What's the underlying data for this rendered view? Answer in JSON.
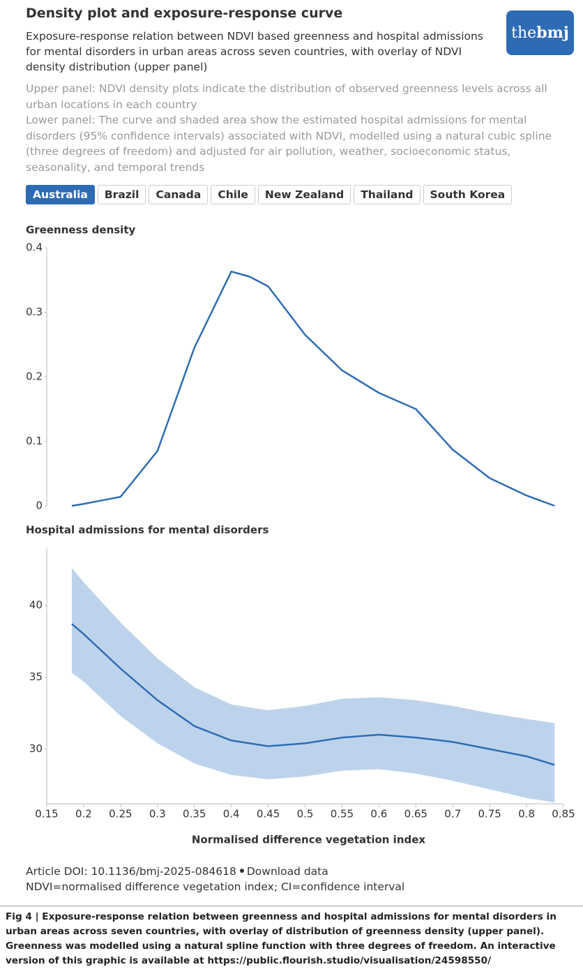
{
  "header": {
    "title": "Density plot and exposure-response curve",
    "subtitle": "Exposure-response relation between NDVI based greenness and hospital admissions for mental disorders in urban areas across seven countries, with overlay of NDVI density distribution (upper panel)",
    "notes": [
      "Upper panel: NDVI density plots indicate the distribution of observed greenness levels across all urban locations in each country",
      "Lower panel: The curve and shaded area show the estimated hospital admissions for mental disorders (95% confidence intervals) associated with NDVI, modelled using a natural cubic spline (three degrees of freedom) and adjusted for air pollution, weather, socioeconomic status, seasonality, and temporal trends"
    ]
  },
  "logo": {
    "prefix": "the",
    "name": "bmj"
  },
  "tabs": [
    "Australia",
    "Brazil",
    "Canada",
    "Chile",
    "New Zealand",
    "Thailand",
    "South Korea"
  ],
  "chart_data": [
    {
      "type": "line",
      "title": "Greenness density",
      "color": "#2e6db4",
      "x": [
        0.184,
        0.2,
        0.25,
        0.3,
        0.35,
        0.4,
        0.425,
        0.45,
        0.5,
        0.55,
        0.6,
        0.65,
        0.7,
        0.75,
        0.8,
        0.838
      ],
      "values": [
        0,
        0.003,
        0.014,
        0.085,
        0.245,
        0.363,
        0.355,
        0.34,
        0.265,
        0.21,
        0.175,
        0.15,
        0.087,
        0.043,
        0.016,
        0
      ],
      "xlim": [
        0.15,
        0.85
      ],
      "ylim": [
        0,
        0.4
      ],
      "yticks": [
        0,
        0.1,
        0.2,
        0.3,
        0.4
      ]
    },
    {
      "type": "line",
      "title": "Hospital admissions for mental disorders",
      "color": "#2e6db4",
      "band_color": "#bdd3ec",
      "xlabel": "Normalised difference vegetation index",
      "x": [
        0.184,
        0.2,
        0.25,
        0.3,
        0.35,
        0.4,
        0.45,
        0.5,
        0.55,
        0.6,
        0.65,
        0.7,
        0.75,
        0.8,
        0.838
      ],
      "values": [
        38.7,
        38.0,
        35.6,
        33.4,
        31.6,
        30.6,
        30.2,
        30.4,
        30.8,
        31.0,
        30.8,
        30.5,
        30.0,
        29.5,
        28.9
      ],
      "ci_upper": [
        42.6,
        41.6,
        38.8,
        36.3,
        34.3,
        33.1,
        32.7,
        33.0,
        33.5,
        33.6,
        33.4,
        33.0,
        32.5,
        32.1,
        31.8
      ],
      "ci_lower": [
        35.3,
        34.7,
        32.3,
        30.4,
        29.0,
        28.2,
        27.9,
        28.1,
        28.5,
        28.6,
        28.3,
        27.8,
        27.2,
        26.6,
        26.3
      ],
      "xlim": [
        0.15,
        0.85
      ],
      "xticks": [
        0.15,
        0.2,
        0.25,
        0.3,
        0.35,
        0.4,
        0.45,
        0.5,
        0.55,
        0.6,
        0.65,
        0.7,
        0.75,
        0.8,
        0.85
      ],
      "ylim": [
        26.2,
        44
      ],
      "yticks": [
        30,
        35,
        40
      ]
    }
  ],
  "footer": {
    "doi": "Article DOI: 10.1136/bmj-2025-084618",
    "download": "Download data",
    "abbrev": "NDVI=normalised difference vegetation index; CI=confidence interval"
  },
  "caption": "Fig 4 | Exposure-response relation between greenness and hospital admissions for mental disorders in urban areas across seven countries, with overlay of distribution of greenness density (upper panel). Greenness was modelled using a natural spline function with three degrees of freedom. An interactive version of this graphic is available at https://public.flourish.studio/visualisation/24598550/"
}
